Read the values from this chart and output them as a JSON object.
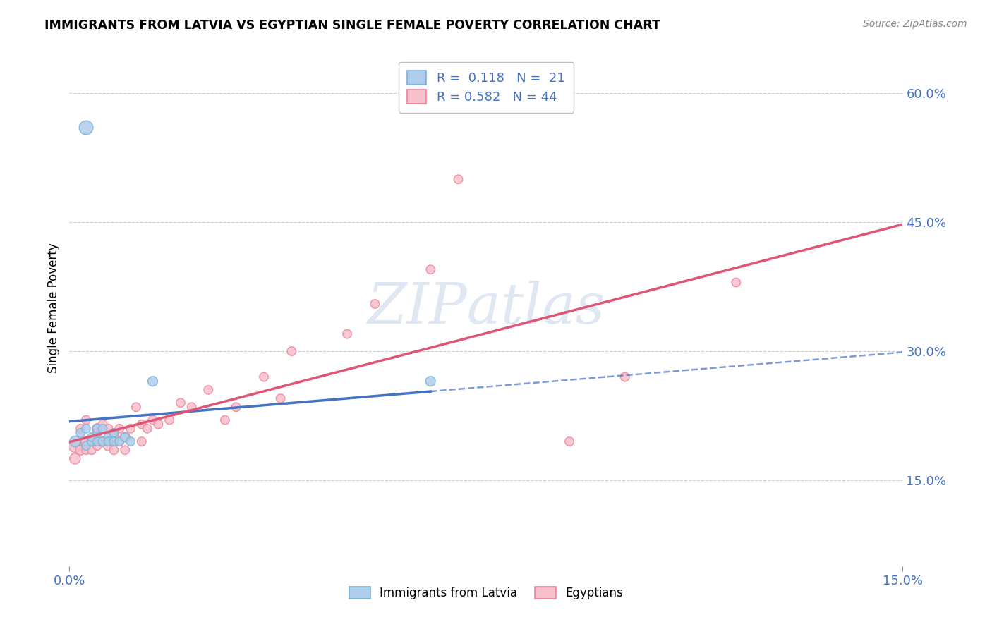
{
  "title": "IMMIGRANTS FROM LATVIA VS EGYPTIAN SINGLE FEMALE POVERTY CORRELATION CHART",
  "source": "Source: ZipAtlas.com",
  "ylabel": "Single Female Poverty",
  "xlim": [
    0.0,
    0.15
  ],
  "ylim": [
    0.05,
    0.65
  ],
  "yticks": [
    0.15,
    0.3,
    0.45,
    0.6
  ],
  "ytick_labels": [
    "15.0%",
    "30.0%",
    "45.0%",
    "60.0%"
  ],
  "xticks": [
    0.0,
    0.15
  ],
  "xtick_labels": [
    "0.0%",
    "15.0%"
  ],
  "color_latvia": "#7ab3d4",
  "color_egypt": "#f08098",
  "color_latvia_fill": "#aecceb",
  "color_egypt_fill": "#f8c0cc",
  "color_line_latvia": "#4472C4",
  "color_line_egypt": "#E05575",
  "color_tick_labels": "#4472C4",
  "background_color": "#ffffff",
  "grid_color": "#cccccc",
  "latvia_x": [
    0.001,
    0.002,
    0.003,
    0.003,
    0.004,
    0.004,
    0.005,
    0.005,
    0.005,
    0.006,
    0.006,
    0.007,
    0.007,
    0.008,
    0.008,
    0.009,
    0.01,
    0.011,
    0.015,
    0.065,
    0.003
  ],
  "latvia_y": [
    0.195,
    0.205,
    0.19,
    0.21,
    0.195,
    0.2,
    0.195,
    0.205,
    0.21,
    0.195,
    0.21,
    0.2,
    0.195,
    0.205,
    0.195,
    0.195,
    0.2,
    0.195,
    0.265,
    0.265,
    0.56
  ],
  "latvia_sizes": [
    120,
    80,
    80,
    80,
    80,
    80,
    80,
    80,
    80,
    80,
    80,
    80,
    80,
    80,
    80,
    80,
    80,
    80,
    100,
    100,
    200
  ],
  "egypt_x": [
    0.001,
    0.001,
    0.002,
    0.002,
    0.003,
    0.003,
    0.003,
    0.004,
    0.004,
    0.005,
    0.005,
    0.006,
    0.006,
    0.007,
    0.007,
    0.008,
    0.008,
    0.009,
    0.009,
    0.01,
    0.01,
    0.011,
    0.012,
    0.013,
    0.013,
    0.014,
    0.015,
    0.016,
    0.018,
    0.02,
    0.022,
    0.025,
    0.028,
    0.03,
    0.035,
    0.038,
    0.04,
    0.05,
    0.055,
    0.065,
    0.07,
    0.09,
    0.1,
    0.12
  ],
  "egypt_y": [
    0.19,
    0.175,
    0.185,
    0.21,
    0.195,
    0.185,
    0.22,
    0.195,
    0.185,
    0.19,
    0.21,
    0.195,
    0.215,
    0.19,
    0.21,
    0.185,
    0.2,
    0.195,
    0.21,
    0.185,
    0.2,
    0.21,
    0.235,
    0.195,
    0.215,
    0.21,
    0.22,
    0.215,
    0.22,
    0.24,
    0.235,
    0.255,
    0.22,
    0.235,
    0.27,
    0.245,
    0.3,
    0.32,
    0.355,
    0.395,
    0.5,
    0.195,
    0.27,
    0.38
  ],
  "egypt_sizes": [
    180,
    120,
    100,
    80,
    100,
    80,
    80,
    100,
    80,
    80,
    100,
    100,
    80,
    100,
    80,
    80,
    100,
    80,
    80,
    80,
    100,
    80,
    80,
    80,
    80,
    80,
    80,
    80,
    80,
    80,
    80,
    80,
    80,
    80,
    80,
    80,
    80,
    80,
    80,
    80,
    80,
    80,
    80,
    80
  ]
}
